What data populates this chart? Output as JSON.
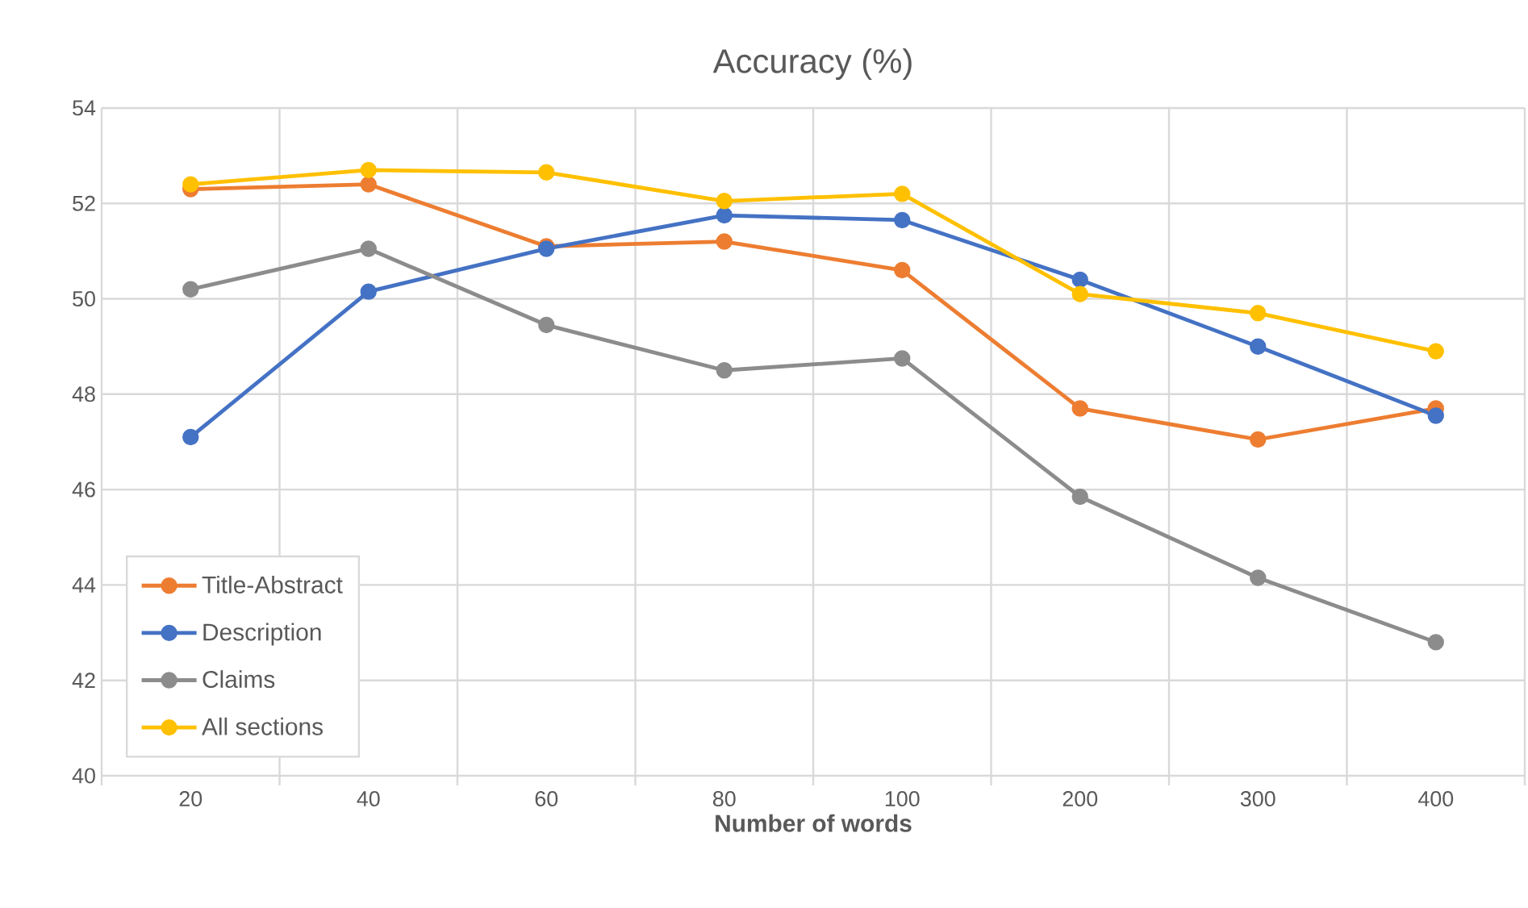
{
  "chart_data": {
    "type": "line",
    "title": "Accuracy (%)",
    "xlabel": "Number of words",
    "categories": [
      "20",
      "40",
      "60",
      "80",
      "100",
      "200",
      "300",
      "400"
    ],
    "ylim": [
      40,
      54
    ],
    "yticks": [
      40,
      42,
      44,
      46,
      48,
      50,
      52,
      54
    ],
    "grid": true,
    "legend": "bottom left",
    "marker": "circle",
    "line_style": "solid",
    "series": [
      {
        "name": "Title-Abstract",
        "color": "#ed7d31",
        "values": [
          52.3,
          52.4,
          51.1,
          51.2,
          50.6,
          47.7,
          47.05,
          47.7
        ]
      },
      {
        "name": "Description",
        "color": "#4472c4",
        "values": [
          47.1,
          50.15,
          51.05,
          51.75,
          51.65,
          50.4,
          49.0,
          47.55
        ]
      },
      {
        "name": "Claims",
        "color": "#8c8c8c",
        "values": [
          50.2,
          51.05,
          49.45,
          48.5,
          48.75,
          45.85,
          44.15,
          42.8
        ]
      },
      {
        "name": "All sections",
        "color": "#ffc000",
        "values": [
          52.4,
          52.7,
          52.65,
          52.05,
          52.2,
          50.1,
          49.7,
          48.9
        ]
      }
    ]
  }
}
